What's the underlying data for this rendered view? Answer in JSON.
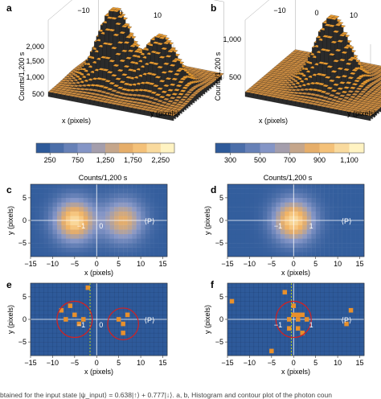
{
  "panels": {
    "a": {
      "label": "a",
      "x_ticks": [
        "−10",
        "0",
        "10"
      ],
      "z_ticks": [
        "500",
        "1,000",
        "1,500",
        "2,000"
      ],
      "zlabel": "Counts/1,200 s",
      "xlabel": "x (pixels)",
      "ylabel": "y (pixels)"
    },
    "b": {
      "label": "b",
      "x_ticks": [
        "−10",
        "0",
        "10"
      ],
      "z_ticks": [
        "500",
        "1,000"
      ],
      "zlabel": "Counts/1,200 s",
      "xlabel": "x (pixels)",
      "ylabel": "y (pixels)"
    },
    "c": {
      "label": "c"
    },
    "d": {
      "label": "d"
    },
    "e": {
      "label": "e"
    },
    "f": {
      "label": "f"
    }
  },
  "colorbars": [
    {
      "ticks": [
        "250",
        "750",
        "1,250",
        "1,750",
        "2,250"
      ],
      "label": "Counts/1,200 s",
      "min": 0,
      "max": 2500
    },
    {
      "ticks": [
        "300",
        "500",
        "700",
        "900",
        "1,100"
      ],
      "label": "Counts/1,200 s",
      "min": 200,
      "max": 1200
    }
  ],
  "colors": {
    "low": "#2e5a9a",
    "mid": "#8898c8",
    "high": "#f0b060",
    "peak": "#fff3c2",
    "marker": "#e8902c",
    "circle": "#d42020",
    "dashed": "#c8e000",
    "axisline": "#ffffff",
    "bar_top": "#e89a30",
    "bar_side": "#2b2b2b"
  },
  "chart_data": [
    {
      "panel": "c",
      "type": "heatmap",
      "xlabel": "x (pixels)",
      "ylabel": "y (pixels)",
      "xlim": [
        -15,
        16
      ],
      "ylim": [
        -8,
        8
      ],
      "x_ticks": [
        -15,
        -10,
        -5,
        0,
        5,
        10,
        15
      ],
      "y_ticks": [
        -5,
        0,
        5
      ],
      "lobes": [
        {
          "x": -5,
          "y": 0,
          "peak": 2300
        },
        {
          "x": 6,
          "y": 0,
          "peak": 1700
        }
      ],
      "annotations": [
        "−1",
        "0",
        "⟨P⟩"
      ]
    },
    {
      "panel": "d",
      "type": "heatmap",
      "xlabel": "x (pixels)",
      "ylabel": "y (pixels)",
      "xlim": [
        -15,
        16
      ],
      "ylim": [
        -8,
        8
      ],
      "x_ticks": [
        -15,
        -10,
        -5,
        0,
        5,
        10,
        15
      ],
      "y_ticks": [
        -5,
        0,
        5
      ],
      "lobes": [
        {
          "x": 0,
          "y": 0,
          "peak": 1100
        }
      ],
      "annotations": [
        "−1",
        "1",
        "⟨P⟩"
      ]
    },
    {
      "panel": "e",
      "type": "scatter",
      "xlabel": "x (pixels)",
      "ylabel": "y (pixels)",
      "xlim": [
        -15,
        16
      ],
      "ylim": [
        -8,
        8
      ],
      "x_ticks": [
        -15,
        -10,
        -5,
        0,
        5,
        10,
        15
      ],
      "y_ticks": [
        -5,
        0,
        5
      ],
      "points": [
        [
          -6,
          3
        ],
        [
          -2,
          7
        ],
        [
          -8,
          2
        ],
        [
          -7,
          0
        ],
        [
          -3,
          0
        ],
        [
          -4,
          -1
        ],
        [
          5,
          0
        ],
        [
          6,
          -1
        ],
        [
          7,
          1
        ],
        [
          6,
          -3
        ],
        [
          -5,
          1
        ]
      ],
      "circles": [
        {
          "x": -5,
          "y": 0,
          "r": 4
        },
        {
          "x": 6,
          "y": -1,
          "r": 3.5
        }
      ],
      "dashed_x": -1.5,
      "annotations": [
        "−1",
        "0",
        "⟨P⟩"
      ]
    },
    {
      "panel": "f",
      "type": "scatter",
      "xlabel": "x (pixels)",
      "ylabel": "y (pixels)",
      "xlim": [
        -15,
        16
      ],
      "ylim": [
        -8,
        8
      ],
      "x_ticks": [
        -15,
        -10,
        -5,
        0,
        5,
        10,
        15
      ],
      "y_ticks": [
        -5,
        0,
        5
      ],
      "points": [
        [
          -14,
          4
        ],
        [
          -2,
          6
        ],
        [
          0,
          3
        ],
        [
          0,
          1
        ],
        [
          -1,
          0
        ],
        [
          1,
          0
        ],
        [
          -1,
          -2
        ],
        [
          1,
          -2
        ],
        [
          2,
          1
        ],
        [
          3,
          0
        ],
        [
          2,
          -3
        ],
        [
          -5,
          -7
        ],
        [
          13,
          2
        ],
        [
          12,
          -1
        ],
        [
          1,
          1
        ]
      ],
      "circles": [
        {
          "x": 0,
          "y": 0,
          "r": 4
        }
      ],
      "dashed_x": -0.5,
      "annotations": [
        "−1",
        "1",
        "⟨P⟩"
      ]
    }
  ],
  "caption_line": "btained for the input state |ψ_input⟩ = 0.638|↑⟩ + 0.777|↓⟩. a, b, Histogram and contour plot of the photon coun"
}
